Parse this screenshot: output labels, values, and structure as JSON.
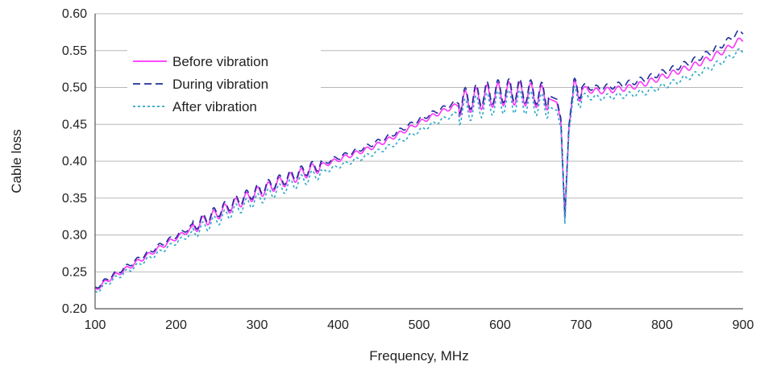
{
  "chart_data": {
    "type": "line",
    "xlabel": "Frequency, MHz",
    "ylabel": "Cable loss",
    "xlim": [
      100,
      900
    ],
    "ylim": [
      0.2,
      0.6
    ],
    "x_ticks": [
      "100",
      "200",
      "300",
      "400",
      "500",
      "600",
      "700",
      "800",
      "900"
    ],
    "y_ticks": [
      "0.20",
      "0.25",
      "0.30",
      "0.35",
      "0.40",
      "0.45",
      "0.50",
      "0.55",
      "0.60"
    ],
    "grid": "horizontal",
    "legend_position": "top-left",
    "x": [
      100,
      120,
      140,
      160,
      180,
      200,
      220,
      240,
      260,
      280,
      300,
      320,
      340,
      360,
      380,
      400,
      420,
      440,
      460,
      480,
      500,
      520,
      540,
      560,
      580,
      600,
      620,
      640,
      660,
      670,
      675,
      680,
      685,
      690,
      700,
      720,
      740,
      760,
      780,
      800,
      820,
      840,
      860,
      880,
      890,
      900
    ],
    "series": [
      {
        "name": "Before vibration",
        "color": "#ff33ff",
        "dash": "",
        "values": [
          0.226,
          0.242,
          0.255,
          0.269,
          0.283,
          0.296,
          0.309,
          0.322,
          0.334,
          0.346,
          0.357,
          0.367,
          0.376,
          0.385,
          0.394,
          0.402,
          0.41,
          0.418,
          0.428,
          0.44,
          0.452,
          0.463,
          0.473,
          0.481,
          0.487,
          0.491,
          0.492,
          0.49,
          0.485,
          0.48,
          0.455,
          0.322,
          0.445,
          0.492,
          0.498,
          0.495,
          0.497,
          0.5,
          0.506,
          0.514,
          0.522,
          0.53,
          0.54,
          0.552,
          0.56,
          0.566
        ]
      },
      {
        "name": "During vibration",
        "color": "#1f2f99",
        "dash": "9 5",
        "values": [
          0.228,
          0.244,
          0.258,
          0.272,
          0.286,
          0.299,
          0.312,
          0.325,
          0.337,
          0.349,
          0.36,
          0.37,
          0.379,
          0.388,
          0.397,
          0.405,
          0.413,
          0.422,
          0.432,
          0.444,
          0.456,
          0.467,
          0.477,
          0.485,
          0.491,
          0.495,
          0.496,
          0.494,
          0.489,
          0.484,
          0.458,
          0.325,
          0.448,
          0.495,
          0.502,
          0.499,
          0.502,
          0.506,
          0.512,
          0.52,
          0.528,
          0.537,
          0.548,
          0.562,
          0.572,
          0.576
        ]
      },
      {
        "name": "After vibration",
        "color": "#2aa8c8",
        "dash": "3 3",
        "values": [
          0.222,
          0.238,
          0.251,
          0.264,
          0.277,
          0.29,
          0.302,
          0.314,
          0.326,
          0.338,
          0.348,
          0.358,
          0.367,
          0.376,
          0.385,
          0.393,
          0.401,
          0.409,
          0.418,
          0.429,
          0.441,
          0.452,
          0.462,
          0.47,
          0.476,
          0.48,
          0.481,
          0.479,
          0.474,
          0.469,
          0.445,
          0.315,
          0.438,
          0.484,
          0.489,
          0.486,
          0.488,
          0.49,
          0.494,
          0.501,
          0.509,
          0.517,
          0.527,
          0.539,
          0.546,
          0.551
        ]
      }
    ]
  }
}
